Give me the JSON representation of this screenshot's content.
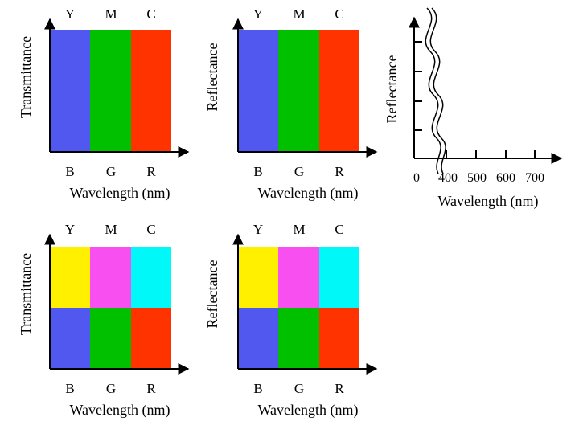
{
  "colors": {
    "blue": "#5058F0",
    "green": "#00C000",
    "red": "#FF3300",
    "yellow": "#FFF000",
    "magenta": "#F850F0",
    "cyan": "#00F8F8",
    "axis": "#000000"
  },
  "panels": [
    {
      "id": "top-left",
      "ylabel": "Transmittance",
      "xlabel": "Wavelength (nm)",
      "top_labels": [
        "Y",
        "M",
        "C"
      ],
      "bottom_labels": [
        "B",
        "G",
        "R"
      ],
      "rows": [
        [
          "blue",
          "green",
          "red"
        ]
      ]
    },
    {
      "id": "top-middle",
      "ylabel": "Reflectance",
      "xlabel": "Wavelength (nm)",
      "top_labels": [
        "Y",
        "M",
        "C"
      ],
      "bottom_labels": [
        "B",
        "G",
        "R"
      ],
      "rows": [
        [
          "blue",
          "green",
          "red"
        ]
      ]
    },
    {
      "id": "bottom-left",
      "ylabel": "Transmittance",
      "xlabel": "Wavelength (nm)",
      "top_labels": [
        "Y",
        "M",
        "C"
      ],
      "bottom_labels": [
        "B",
        "G",
        "R"
      ],
      "rows": [
        [
          "yellow",
          "magenta",
          "cyan"
        ],
        [
          "blue",
          "green",
          "red"
        ]
      ]
    },
    {
      "id": "bottom-middle",
      "ylabel": "Reflectance",
      "xlabel": "Wavelength (nm)",
      "top_labels": [
        "Y",
        "M",
        "C"
      ],
      "bottom_labels": [
        "B",
        "G",
        "R"
      ],
      "rows": [
        [
          "yellow",
          "magenta",
          "cyan"
        ],
        [
          "blue",
          "green",
          "red"
        ]
      ]
    }
  ],
  "right_axis": {
    "ylabel": "Reflectance",
    "xlabel": "Wavelength (nm)",
    "zero_label": "0",
    "tick_labels": [
      "400",
      "500",
      "600",
      "700"
    ]
  }
}
